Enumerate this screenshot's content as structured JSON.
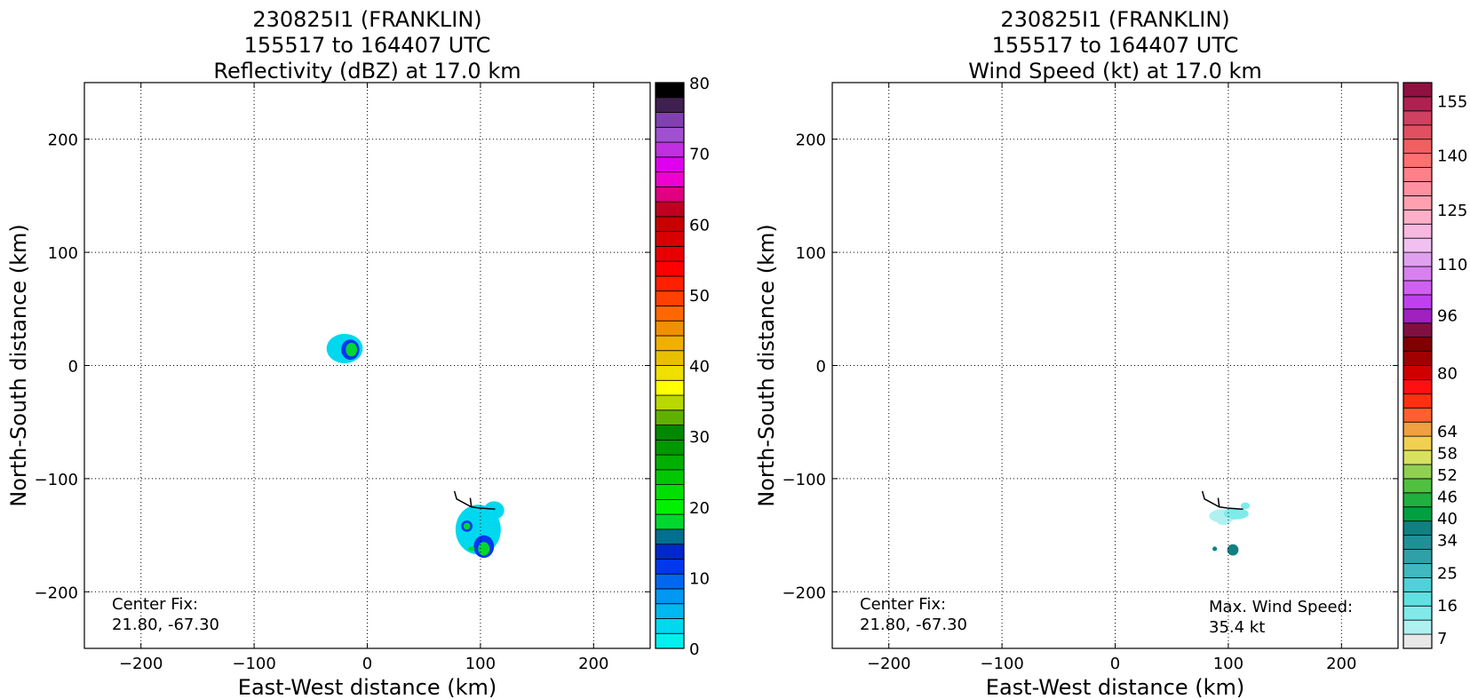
{
  "chart_data": [
    {
      "type": "heatmap",
      "title_lines": [
        "230825I1 (FRANKLIN)",
        "155517 to 164407 UTC",
        "Reflectivity (dBZ) at 17.0 km"
      ],
      "xlabel": "East-West distance (km)",
      "ylabel": "North-South distance (km)",
      "xlim": [
        -250,
        250
      ],
      "ylim": [
        -250,
        250
      ],
      "xticks": [
        -200,
        -100,
        0,
        100,
        200
      ],
      "yticks": [
        -200,
        -100,
        0,
        100,
        200
      ],
      "tick_labels_x": [
        "−200",
        "−100",
        "0",
        "100",
        "200"
      ],
      "tick_labels_y": [
        "−200",
        "−100",
        "0",
        "100",
        "200"
      ],
      "grid": true,
      "annotation_left": [
        "Center Fix:",
        "21.80, -67.30"
      ],
      "colorbar": {
        "min": 0,
        "max": 80,
        "tick_values": [
          0,
          10,
          20,
          30,
          40,
          50,
          60,
          70,
          80
        ],
        "tick_labels": [
          "0",
          "10",
          "20",
          "30",
          "40",
          "50",
          "60",
          "70",
          "80"
        ],
        "colors": [
          "#00f0f0",
          "#00d8f0",
          "#00b8f0",
          "#0098f0",
          "#0068f0",
          "#0038f0",
          "#0028c8",
          "#007090",
          "#00d830",
          "#00f000",
          "#00e000",
          "#00c800",
          "#00b000",
          "#009800",
          "#008800",
          "#60b000",
          "#b8d800",
          "#ffff00",
          "#f0e000",
          "#e8c000",
          "#f0b000",
          "#f09000",
          "#ff6800",
          "#ff4000",
          "#ff2000",
          "#ff0000",
          "#e80000",
          "#d80000",
          "#c80000",
          "#c00020",
          "#e00080",
          "#f000d0",
          "#e000f0",
          "#c030e0",
          "#a050d0",
          "#8040b0",
          "#402050",
          "#000000"
        ]
      },
      "features": [
        {
          "x": -20,
          "y": 15,
          "rx": 16,
          "ry": 13,
          "color": "#00d8f0"
        },
        {
          "x": -15,
          "y": 14,
          "rx": 8,
          "ry": 9,
          "color": "#0038f0"
        },
        {
          "x": -14,
          "y": 14,
          "rx": 5,
          "ry": 6,
          "color": "#00d830"
        },
        {
          "x": 98,
          "y": -145,
          "rx": 20,
          "ry": 22,
          "color": "#00d8f0"
        },
        {
          "x": 112,
          "y": -128,
          "rx": 9,
          "ry": 8,
          "color": "#00d8f0"
        },
        {
          "x": 88,
          "y": -142,
          "rx": 5,
          "ry": 5,
          "color": "#0038f0"
        },
        {
          "x": 88,
          "y": -142,
          "rx": 3,
          "ry": 3,
          "color": "#00d830"
        },
        {
          "x": 103,
          "y": -160,
          "rx": 9,
          "ry": 10,
          "color": "#0038f0"
        },
        {
          "x": 103,
          "y": -162,
          "rx": 5,
          "ry": 6,
          "color": "#00d830"
        },
        {
          "x": 92,
          "y": -162,
          "rx": 3,
          "ry": 2,
          "color": "#00d830"
        }
      ],
      "track": [
        [
          77,
          -111
        ],
        [
          79,
          -118
        ],
        [
          92,
          -125
        ],
        [
          99,
          -126
        ],
        [
          113,
          -127
        ]
      ],
      "track_branch": [
        [
          92,
          -125
        ],
        [
          91,
          -117
        ]
      ]
    },
    {
      "type": "heatmap",
      "title_lines": [
        "230825I1 (FRANKLIN)",
        "155517 to 164407 UTC",
        "Wind Speed (kt) at 17.0 km"
      ],
      "xlabel": "East-West distance (km)",
      "ylabel": "North-South distance (km)",
      "xlim": [
        -250,
        250
      ],
      "ylim": [
        -250,
        250
      ],
      "xticks": [
        -200,
        -100,
        0,
        100,
        200
      ],
      "yticks": [
        -200,
        -100,
        0,
        100,
        200
      ],
      "tick_labels_x": [
        "−200",
        "−100",
        "0",
        "100",
        "200"
      ],
      "tick_labels_y": [
        "−200",
        "−100",
        "0",
        "100",
        "200"
      ],
      "grid": true,
      "annotation_left": [
        "Center Fix:",
        "21.80, -67.30"
      ],
      "annotation_right": [
        "Max. Wind Speed:",
        "35.4 kt"
      ],
      "colorbar": {
        "min": 4,
        "max": 160,
        "tick_values": [
          7,
          16,
          25,
          34,
          40,
          46,
          52,
          58,
          64,
          80,
          96,
          110,
          125,
          140,
          155
        ],
        "tick_labels": [
          "7",
          "16",
          "25",
          "34",
          "40",
          "46",
          "52",
          "58",
          "64",
          "80",
          "96",
          "110",
          "125",
          "140",
          "155"
        ],
        "colors": [
          "#e8e8e8",
          "#b0f0f0",
          "#80eaea",
          "#60e0e0",
          "#50d0d8",
          "#40b8c0",
          "#30a0a8",
          "#209098",
          "#108080",
          "#00a040",
          "#20b040",
          "#50c040",
          "#90d050",
          "#d8e060",
          "#f0d050",
          "#f0a040",
          "#ff6030",
          "#ff3010",
          "#ff1010",
          "#d00000",
          "#a00000",
          "#800000",
          "#801040",
          "#a020c0",
          "#c040f0",
          "#d060f0",
          "#d880f0",
          "#e0a0f0",
          "#f0c0f0",
          "#f8b8e0",
          "#ffb0c8",
          "#ffa0b0",
          "#ff90a0",
          "#ff8088",
          "#ff7070",
          "#f06060",
          "#e05060",
          "#d04060",
          "#b02050",
          "#901040"
        ]
      },
      "features": [
        {
          "x": 95,
          "y": -133,
          "rx": 12,
          "ry": 6,
          "color": "#b0f0f0"
        },
        {
          "x": 107,
          "y": -131,
          "rx": 11,
          "ry": 5,
          "color": "#80eaea"
        },
        {
          "x": 115,
          "y": -124,
          "rx": 4,
          "ry": 3,
          "color": "#80eaea"
        },
        {
          "x": 96,
          "y": -138,
          "rx": 6,
          "ry": 3,
          "color": "#b0f0f0"
        },
        {
          "x": 104,
          "y": -163,
          "rx": 5,
          "ry": 5,
          "color": "#108080"
        },
        {
          "x": 88,
          "y": -162,
          "rx": 2,
          "ry": 2,
          "color": "#108080"
        }
      ],
      "track": [
        [
          77,
          -111
        ],
        [
          79,
          -118
        ],
        [
          92,
          -125
        ],
        [
          99,
          -126
        ],
        [
          113,
          -127
        ]
      ],
      "track_branch": [
        [
          92,
          -125
        ],
        [
          91,
          -117
        ]
      ]
    }
  ]
}
